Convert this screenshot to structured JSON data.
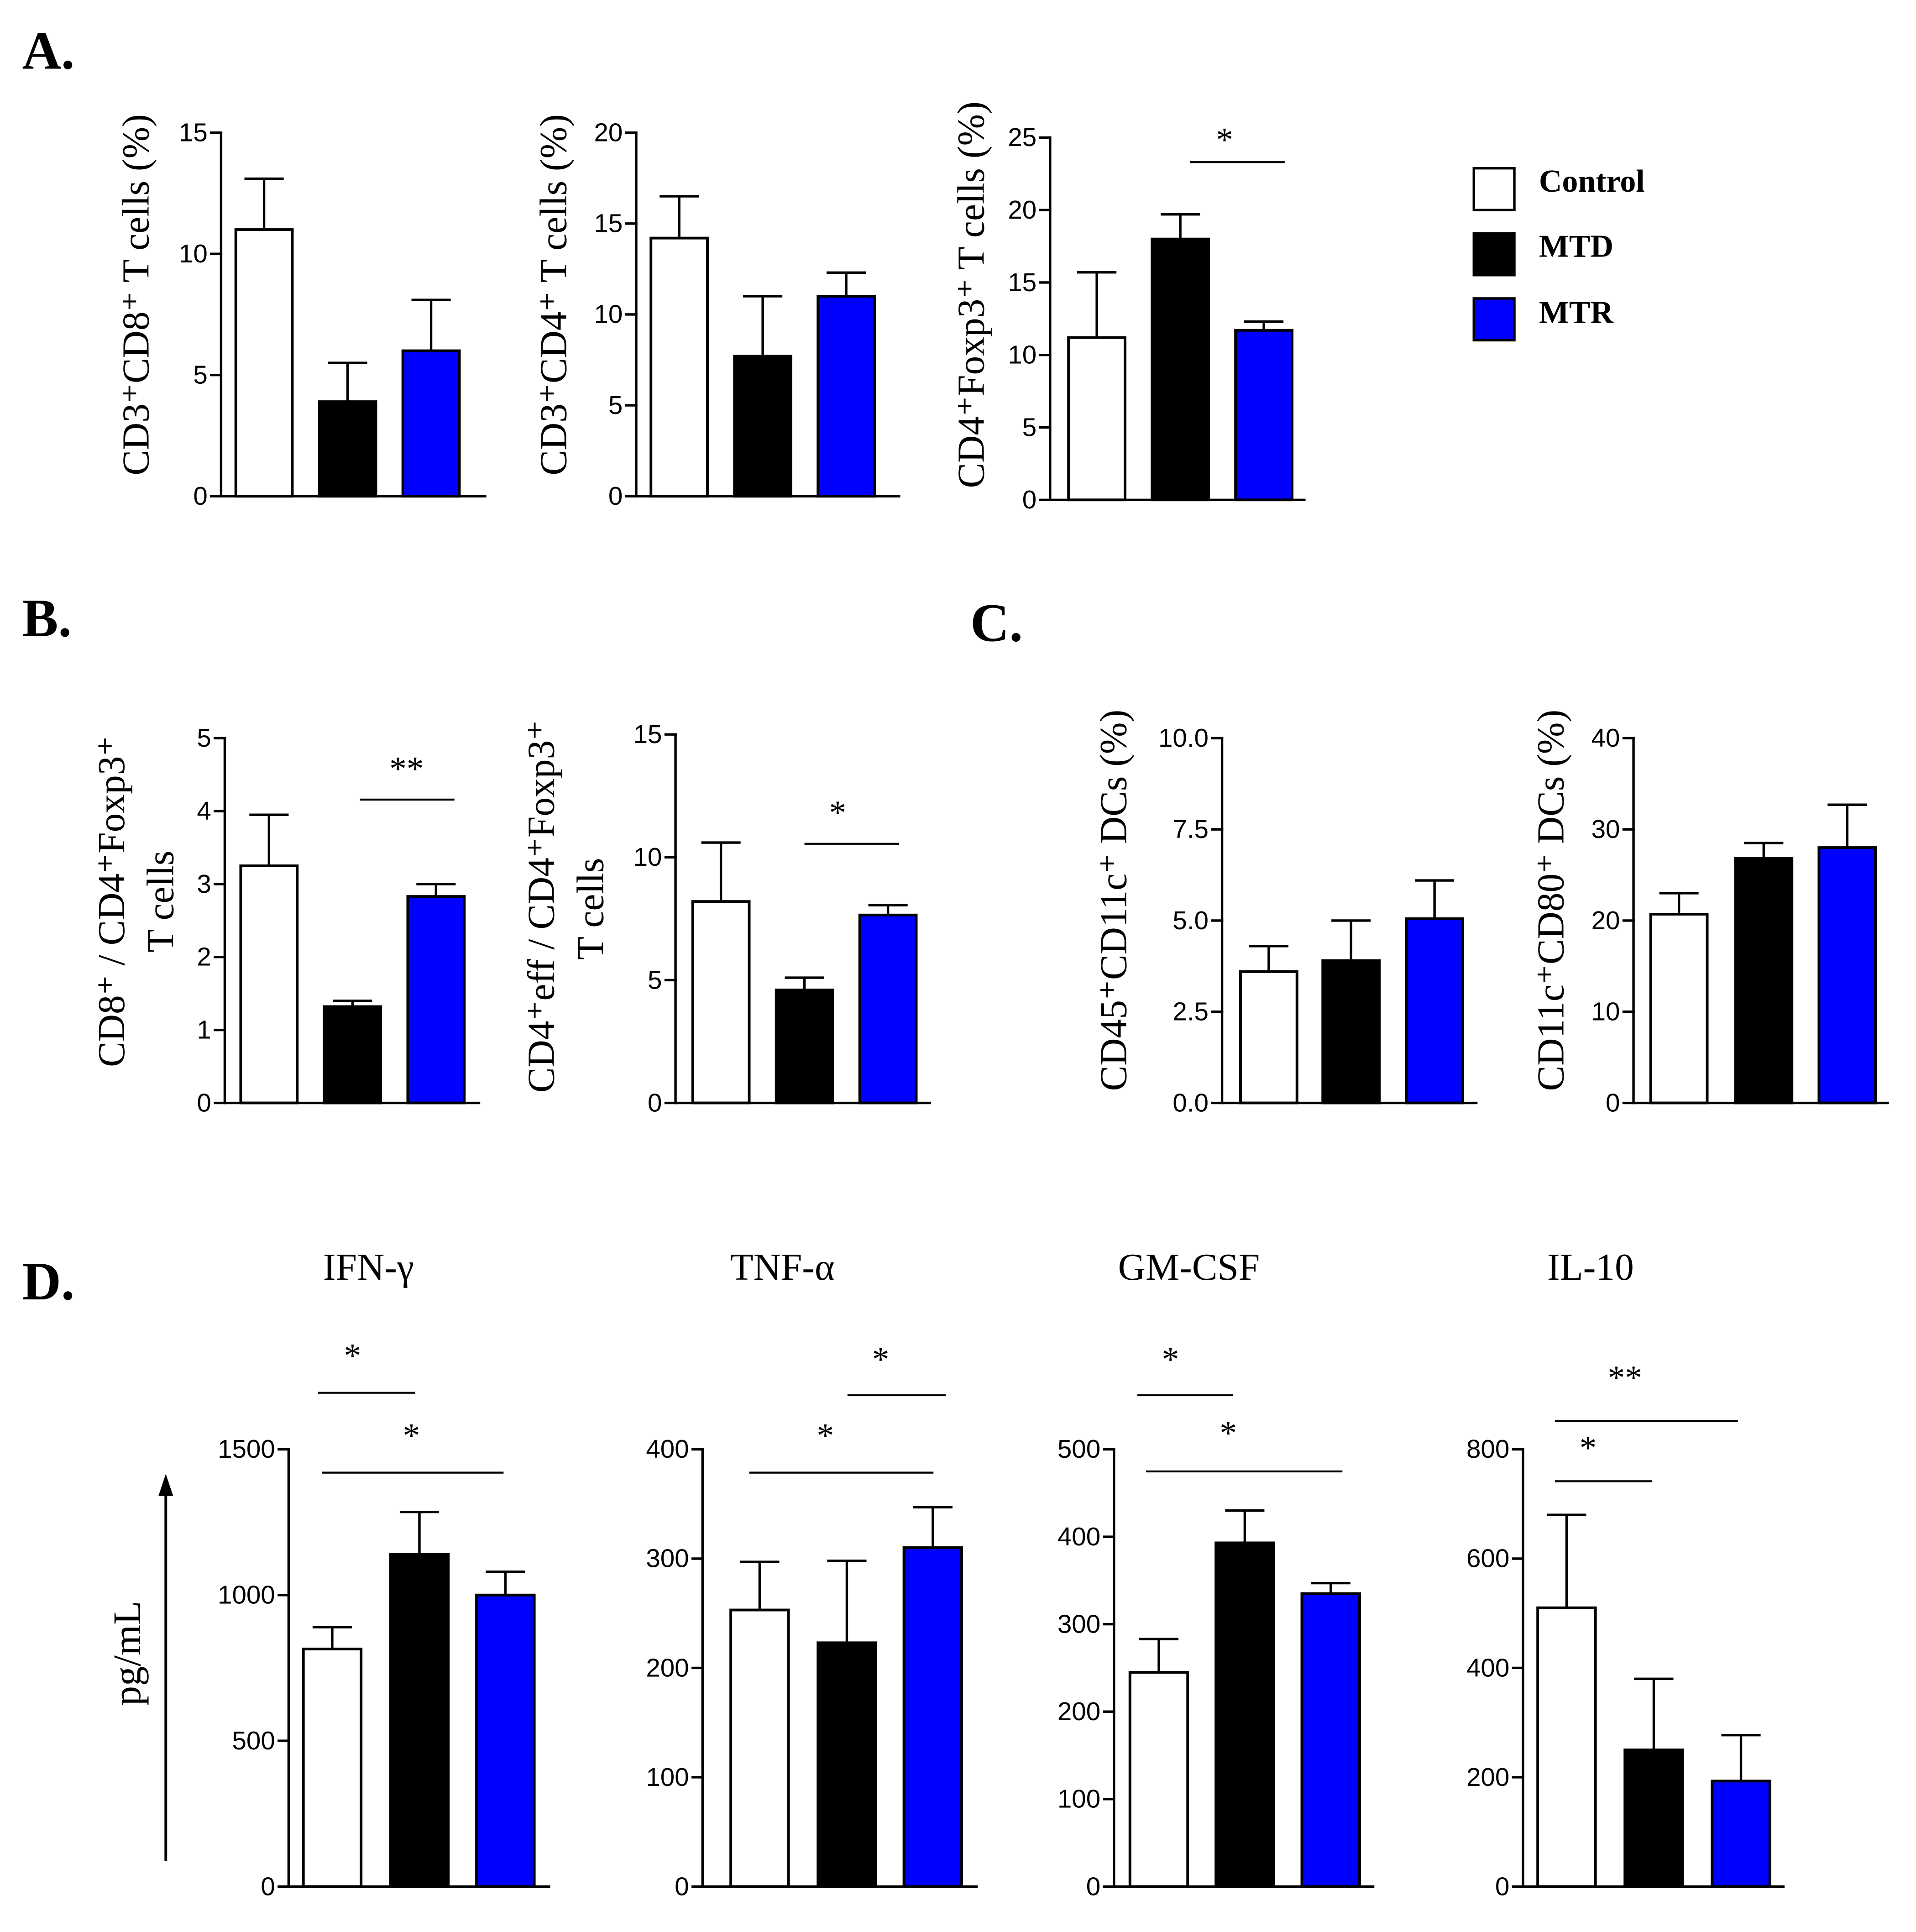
{
  "panel_labels": {
    "a": "A.",
    "b": "B.",
    "c": "C.",
    "d": "D."
  },
  "legend": {
    "items": [
      {
        "label": "Control",
        "color": "#FFFFFF"
      },
      {
        "label": "MTD",
        "color": "#000000"
      },
      {
        "label": "MTR",
        "color": "#0000FF"
      }
    ]
  },
  "panel_d": {
    "ylabel": "pg/mL"
  },
  "chart_data": [
    {
      "type": "bar",
      "ylabel": [
        "CD3⁺CD8⁺ T cells (%)"
      ],
      "categories": [
        "Control",
        "MTD",
        "MTR"
      ],
      "values": [
        11.0,
        3.9,
        6.0
      ],
      "errors": [
        2.1,
        1.6,
        2.1
      ],
      "ylim": [
        0,
        15
      ],
      "yticks": [
        "0",
        "5",
        "10",
        "15"
      ],
      "significance": []
    },
    {
      "type": "bar",
      "ylabel": [
        "CD3⁺CD4⁺ T cells (%)"
      ],
      "categories": [
        "Control",
        "MTD",
        "MTR"
      ],
      "values": [
        14.2,
        7.7,
        11.0
      ],
      "errors": [
        2.3,
        3.3,
        1.3
      ],
      "ylim": [
        0,
        20
      ],
      "yticks": [
        "0",
        "5",
        "10",
        "15",
        "20"
      ],
      "significance": []
    },
    {
      "type": "bar",
      "ylabel": [
        "CD4⁺Foxp3⁺ T cells (%)"
      ],
      "categories": [
        "Control",
        "MTD",
        "MTR"
      ],
      "values": [
        11.2,
        18.0,
        11.7
      ],
      "errors": [
        4.5,
        1.7,
        0.6
      ],
      "ylim": [
        0,
        25
      ],
      "yticks": [
        "0",
        "5",
        "10",
        "15",
        "20",
        "25"
      ],
      "significance": [
        {
          "label": "*",
          "groups": [
            "MTD",
            "MTR"
          ]
        }
      ]
    },
    {
      "type": "bar",
      "ylabel": [
        "CD8⁺ / CD4⁺Foxp3⁺",
        "T cells"
      ],
      "categories": [
        "Control",
        "MTD",
        "MTR"
      ],
      "values": [
        3.25,
        1.32,
        2.83
      ],
      "errors": [
        0.7,
        0.08,
        0.17
      ],
      "ylim": [
        0,
        5
      ],
      "yticks": [
        "0",
        "1",
        "2",
        "3",
        "4",
        "5"
      ],
      "significance": [
        {
          "label": "**",
          "groups": [
            "MTD",
            "MTR"
          ]
        }
      ]
    },
    {
      "type": "bar",
      "ylabel": [
        "CD4⁺eff / CD4⁺Foxp3⁺",
        "T cells"
      ],
      "categories": [
        "Control",
        "MTD",
        "MTR"
      ],
      "values": [
        8.2,
        4.6,
        7.65
      ],
      "errors": [
        2.4,
        0.5,
        0.4
      ],
      "ylim": [
        0,
        15
      ],
      "yticks": [
        "0",
        "5",
        "10",
        "15"
      ],
      "significance": [
        {
          "label": "*",
          "groups": [
            "MTD",
            "MTR"
          ]
        }
      ]
    },
    {
      "type": "bar",
      "ylabel": [
        "CD45⁺CD11c⁺ DCs (%)"
      ],
      "categories": [
        "Control",
        "MTD",
        "MTR"
      ],
      "values": [
        3.6,
        3.9,
        5.05
      ],
      "errors": [
        0.7,
        1.1,
        1.05
      ],
      "ylim": [
        0,
        10
      ],
      "yticks": [
        "0.0",
        "2.5",
        "5.0",
        "7.5",
        "10.0"
      ],
      "significance": []
    },
    {
      "type": "bar",
      "ylabel": [
        "CD11c⁺CD80⁺ DCs (%)"
      ],
      "categories": [
        "Control",
        "MTD",
        "MTR"
      ],
      "values": [
        20.7,
        26.8,
        28.0
      ],
      "errors": [
        2.3,
        1.7,
        4.7
      ],
      "ylim": [
        0,
        40
      ],
      "yticks": [
        "0",
        "10",
        "20",
        "30",
        "40"
      ],
      "significance": []
    },
    {
      "type": "bar",
      "title": "IFN-γ",
      "categories": [
        "Control",
        "MTD",
        "MTR"
      ],
      "values": [
        815,
        1140,
        1000
      ],
      "errors": [
        75,
        145,
        80
      ],
      "ylim": [
        0,
        1500
      ],
      "yticks": [
        "0",
        "500",
        "1000",
        "1500"
      ],
      "significance": [
        {
          "label": "*",
          "groups": [
            "Control",
            "MTD"
          ]
        },
        {
          "label": "*",
          "groups": [
            "Control",
            "MTR"
          ]
        }
      ]
    },
    {
      "type": "bar",
      "title": "TNF-α",
      "categories": [
        "Control",
        "MTD",
        "MTR"
      ],
      "values": [
        253,
        223,
        310
      ],
      "errors": [
        44,
        75,
        37
      ],
      "ylim": [
        0,
        400
      ],
      "yticks": [
        "0",
        "100",
        "200",
        "300",
        "400"
      ],
      "significance": [
        {
          "label": "*",
          "groups": [
            "MTD",
            "MTR"
          ]
        },
        {
          "label": "*",
          "groups": [
            "Control",
            "MTR"
          ]
        }
      ]
    },
    {
      "type": "bar",
      "title": "GM-CSF",
      "categories": [
        "Control",
        "MTD",
        "MTR"
      ],
      "values": [
        245,
        393,
        335
      ],
      "errors": [
        38,
        37,
        12
      ],
      "ylim": [
        0,
        500
      ],
      "yticks": [
        "0",
        "100",
        "200",
        "300",
        "400",
        "500"
      ],
      "significance": [
        {
          "label": "*",
          "groups": [
            "Control",
            "MTD"
          ]
        },
        {
          "label": "*",
          "groups": [
            "Control",
            "MTR"
          ]
        }
      ]
    },
    {
      "type": "bar",
      "title": "IL-10",
      "categories": [
        "Control",
        "MTD",
        "MTR"
      ],
      "values": [
        510,
        250,
        193
      ],
      "errors": [
        170,
        130,
        84
      ],
      "ylim": [
        0,
        800
      ],
      "yticks": [
        "0",
        "200",
        "400",
        "600",
        "800"
      ],
      "significance": [
        {
          "label": "**",
          "groups": [
            "Control",
            "MTR"
          ]
        },
        {
          "label": "*",
          "groups": [
            "Control",
            "MTD"
          ]
        }
      ]
    }
  ]
}
